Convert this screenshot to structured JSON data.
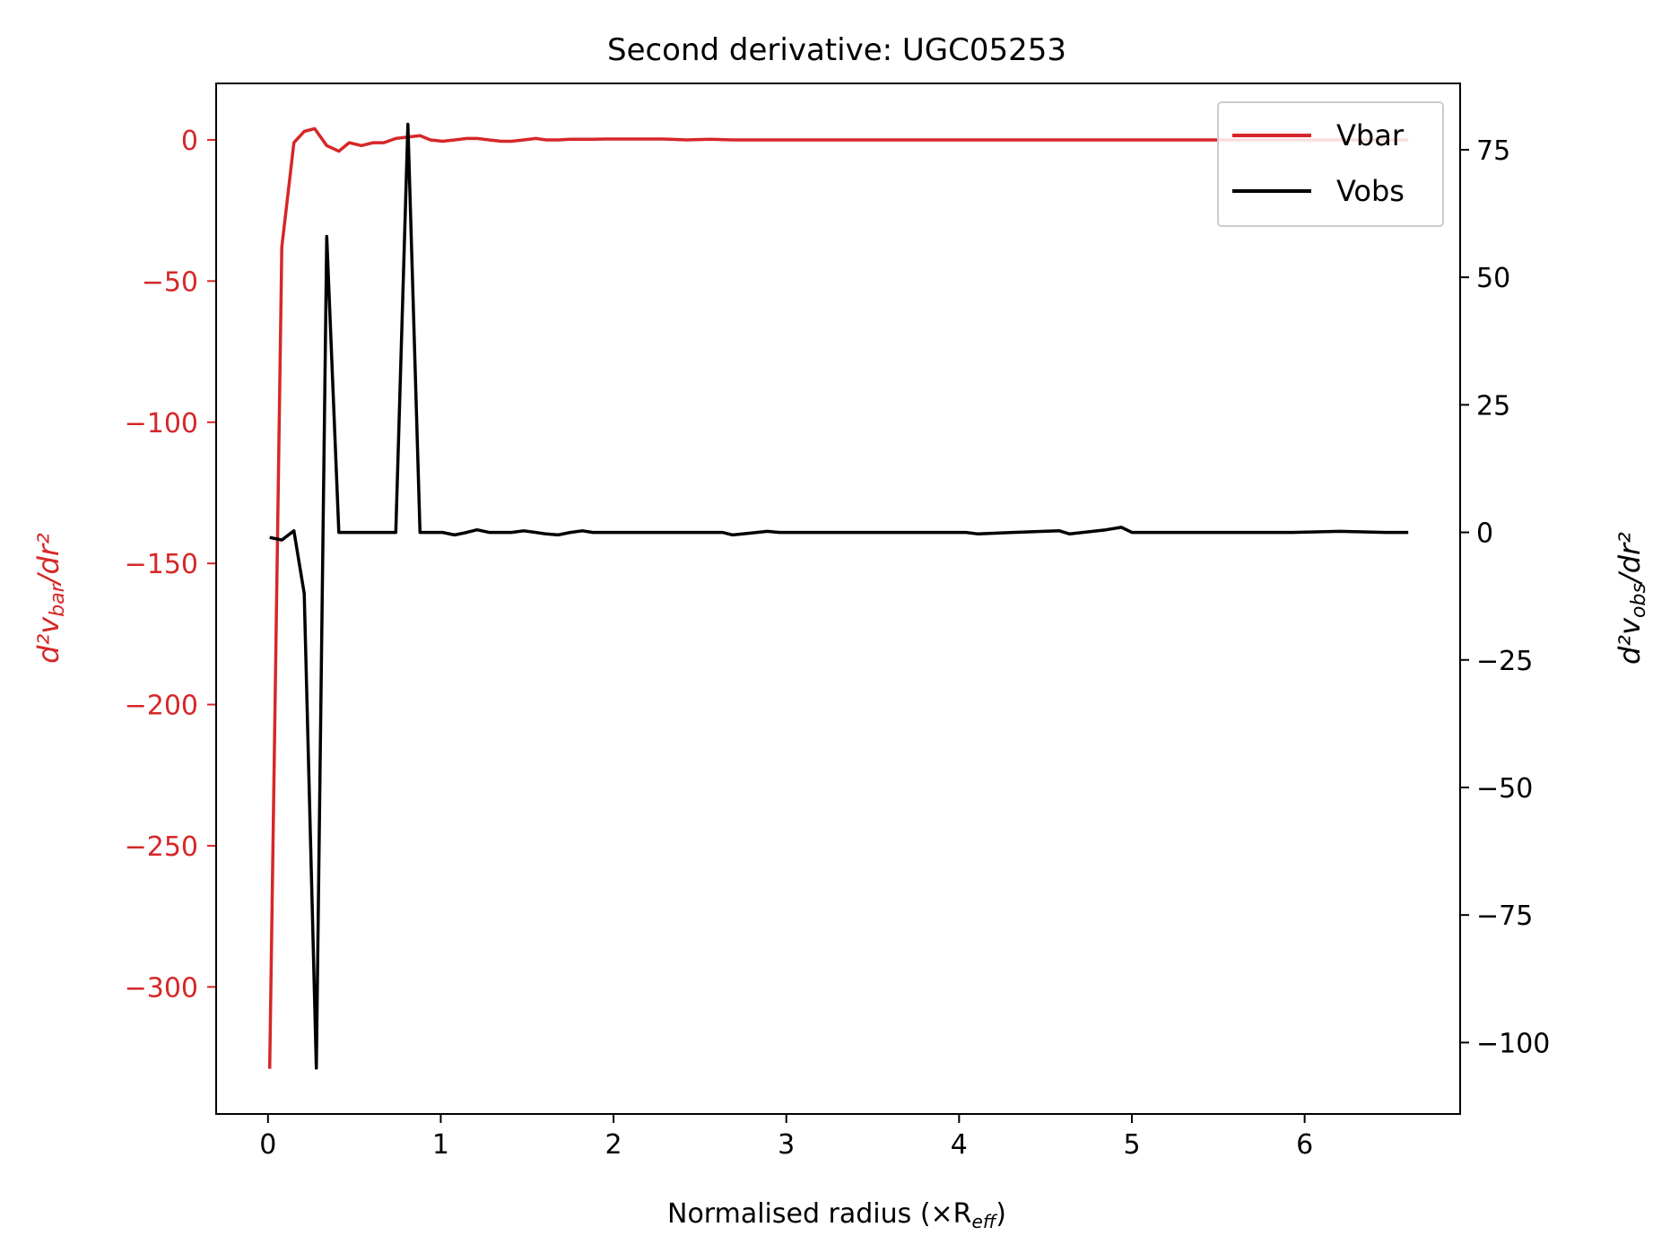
{
  "chart_data": {
    "type": "line",
    "title": "Second derivative: UGC05253",
    "xlabel": "Normalised radius (×R_eff)",
    "ylabel_left": "d²v_bar/dr²",
    "ylabel_right": "d²v_obs/dr²",
    "xlim": [
      -0.3,
      6.9
    ],
    "ylim_left": [
      -345,
      20
    ],
    "ylim_right": [
      -114,
      88
    ],
    "x_ticks": [
      0,
      1,
      2,
      3,
      4,
      5,
      6
    ],
    "y_ticks_left": [
      0,
      -50,
      -100,
      -150,
      -200,
      -250,
      -300
    ],
    "y_ticks_right": [
      75,
      50,
      25,
      0,
      -25,
      -50,
      -75,
      -100
    ],
    "grid": false,
    "legend_position": "top-right",
    "colors": {
      "Vbar": "#d62728",
      "Vobs": "#000000"
    },
    "series": [
      {
        "name": "Vbar",
        "axis": "left",
        "x": [
          0.01,
          0.08,
          0.15,
          0.21,
          0.27,
          0.34,
          0.41,
          0.47,
          0.54,
          0.61,
          0.67,
          0.74,
          0.81,
          0.88,
          0.94,
          1.01,
          1.08,
          1.15,
          1.21,
          1.28,
          1.35,
          1.41,
          1.48,
          1.55,
          1.61,
          1.68,
          1.75,
          1.82,
          1.88,
          1.95,
          2.02,
          2.15,
          2.29,
          2.42,
          2.56,
          2.69,
          2.83,
          2.96,
          3.23,
          3.5,
          3.77,
          4.04,
          4.31,
          4.58,
          4.85,
          5.12,
          5.39,
          5.66,
          5.93,
          6.2,
          6.47,
          6.6
        ],
        "y": [
          -329,
          -38,
          -1,
          3,
          4,
          -2,
          -4,
          -1,
          -2,
          -1,
          -1,
          0.5,
          1,
          1.5,
          0,
          -0.5,
          0,
          0.5,
          0.5,
          0,
          -0.5,
          -0.5,
          0,
          0.5,
          0,
          0,
          0.2,
          0.2,
          0.2,
          0.3,
          0.3,
          0.3,
          0.3,
          0,
          0.2,
          0,
          0,
          0,
          0,
          0,
          0,
          0,
          0,
          0,
          0,
          0,
          0,
          0,
          0,
          0,
          0,
          0
        ]
      },
      {
        "name": "Vobs",
        "axis": "right",
        "x": [
          0.01,
          0.08,
          0.15,
          0.21,
          0.28,
          0.34,
          0.41,
          0.47,
          0.54,
          0.61,
          0.67,
          0.74,
          0.81,
          0.88,
          0.94,
          1.01,
          1.08,
          1.15,
          1.21,
          1.28,
          1.35,
          1.41,
          1.48,
          1.55,
          1.61,
          1.68,
          1.75,
          1.82,
          1.88,
          1.95,
          2.02,
          2.15,
          2.29,
          2.42,
          2.56,
          2.63,
          2.69,
          2.83,
          2.89,
          2.96,
          3.23,
          3.5,
          3.77,
          4.04,
          4.11,
          4.31,
          4.58,
          4.64,
          4.85,
          4.94,
          5.0,
          5.12,
          5.39,
          5.66,
          5.93,
          6.2,
          6.47,
          6.6
        ],
        "y": [
          -1,
          -1.5,
          0.3,
          -12,
          -105,
          58,
          0,
          0,
          0,
          0,
          0,
          0,
          80,
          0,
          0,
          0,
          -0.5,
          0,
          0.5,
          0,
          0,
          0,
          0.3,
          0,
          -0.3,
          -0.5,
          0,
          0.3,
          0,
          0,
          0,
          0,
          0,
          0,
          0,
          0,
          -0.5,
          0,
          0.2,
          0,
          0,
          0,
          0,
          0,
          -0.3,
          0,
          0.3,
          -0.3,
          0.5,
          1,
          0,
          0,
          0,
          0,
          0,
          0.2,
          0,
          0
        ]
      }
    ]
  }
}
